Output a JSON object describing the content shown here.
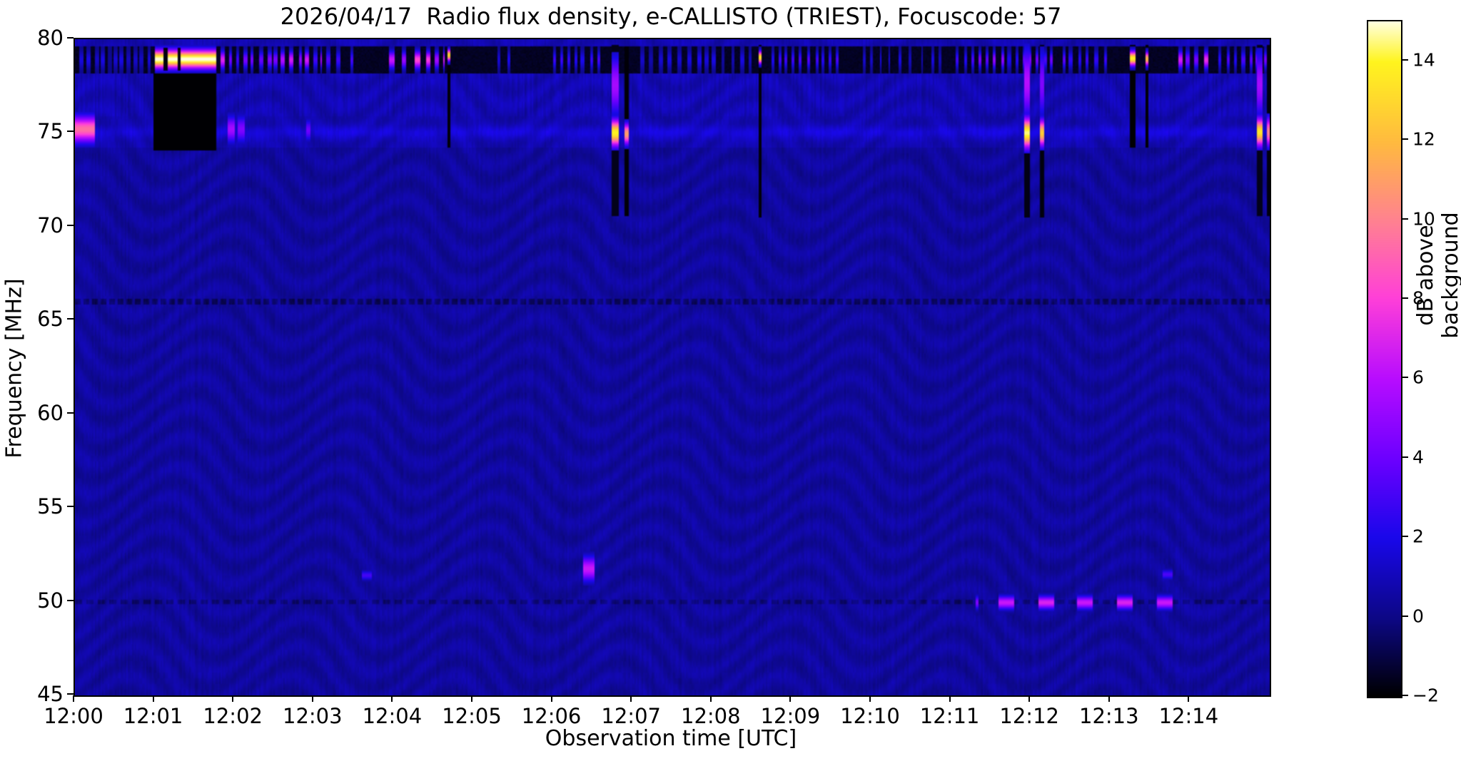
{
  "chart_data": {
    "type": "heatmap",
    "subtype": "radio-spectrogram",
    "title": "2026/04/17  Radio flux density, e-CALLISTO (TRIEST), Focuscode: 57",
    "xlabel": "Observation time [UTC]",
    "ylabel": "Frequency [MHz]",
    "x_range_minutes": [
      0,
      15
    ],
    "x_ticks": [
      {
        "t": 0,
        "label": "12:00"
      },
      {
        "t": 1,
        "label": "12:01"
      },
      {
        "t": 2,
        "label": "12:02"
      },
      {
        "t": 3,
        "label": "12:03"
      },
      {
        "t": 4,
        "label": "12:04"
      },
      {
        "t": 5,
        "label": "12:05"
      },
      {
        "t": 6,
        "label": "12:06"
      },
      {
        "t": 7,
        "label": "12:07"
      },
      {
        "t": 8,
        "label": "12:08"
      },
      {
        "t": 9,
        "label": "12:09"
      },
      {
        "t": 10,
        "label": "12:10"
      },
      {
        "t": 11,
        "label": "12:11"
      },
      {
        "t": 12,
        "label": "12:12"
      },
      {
        "t": 13,
        "label": "12:13"
      },
      {
        "t": 14,
        "label": "12:14"
      }
    ],
    "ylim": [
      45,
      80
    ],
    "y_ticks": [
      80,
      75,
      70,
      65,
      60,
      55,
      50,
      45
    ],
    "grid": false,
    "colorbar": {
      "label": "dB above background",
      "ticks": [
        -2,
        0,
        2,
        4,
        6,
        8,
        10,
        12,
        14
      ],
      "tick_labels": [
        "−2",
        "0",
        "2",
        "4",
        "6",
        "8",
        "10",
        "12",
        "14"
      ],
      "vmin": -2,
      "vmax": 15,
      "colormap": "gnuplot2",
      "key_colors": {
        "low": "#000000",
        "mid_blue": "#0000a0",
        "violet": "#6a00ff",
        "magenta": "#ff40d0",
        "orange": "#ffb040",
        "yellow": "#fff320",
        "high": "#fffde0"
      }
    },
    "background_db": 0.5,
    "structure": {
      "rfi_black_band_mhz": [
        78.2,
        79.7
      ],
      "striped_zone_mhz": [
        75.9,
        78.2
      ],
      "line_75mhz": 75.05,
      "dotted_line_66mhz": 66.0,
      "dotted_line_50mhz": 49.95
    },
    "features": {
      "band_rect": {
        "t": [
          0.99,
          1.77
        ],
        "f": [
          74.1,
          78.2
        ],
        "db": -1.95
      },
      "bright_band": {
        "t": [
          1.0,
          1.77
        ],
        "f": [
          78.45,
          79.42
        ],
        "db": 15.3
      },
      "band_gaps": [
        {
          "t": 1.145,
          "w": 0.05,
          "f": [
            78.3,
            79.55
          ],
          "db": -1.8
        },
        {
          "t": 1.315,
          "w": 0.04,
          "f": [
            78.3,
            79.55
          ],
          "db": -1.8
        }
      ],
      "blobs": [
        {
          "t": [
            0.0,
            0.25
          ],
          "f": [
            74.5,
            75.9
          ],
          "db": 9.5
        },
        {
          "t": [
            1.92,
            2.0
          ],
          "f": [
            74.5,
            75.9
          ],
          "db": 5.5
        },
        {
          "t": [
            2.05,
            2.13
          ],
          "f": [
            74.5,
            75.9
          ],
          "db": 4.5
        },
        {
          "t": [
            2.9,
            2.96
          ],
          "f": [
            74.6,
            75.7
          ],
          "db": 4.0
        },
        {
          "t": [
            3.6,
            3.73
          ],
          "f": [
            51.15,
            51.65
          ],
          "db": 3.0
        },
        {
          "t": [
            6.38,
            6.53
          ],
          "f": [
            51.1,
            52.4
          ],
          "db": 6.5
        },
        {
          "t": [
            13.66,
            13.79
          ],
          "f": [
            51.2,
            51.7
          ],
          "db": 3.2
        }
      ],
      "dashes_50mhz": {
        "f": [
          49.6,
          50.3
        ],
        "items": [
          {
            "t": [
              11.3,
              11.345
            ],
            "db": 4.5
          },
          {
            "t": [
              11.6,
              11.8
            ],
            "db": 6.5
          },
          {
            "t": [
              12.1,
              12.3
            ],
            "db": 7.0
          },
          {
            "t": [
              12.58,
              12.78
            ],
            "db": 6.5
          },
          {
            "t": [
              13.08,
              13.28
            ],
            "db": 7.0
          },
          {
            "t": [
              13.58,
              13.78
            ],
            "db": 6.5
          }
        ]
      },
      "streaks": [
        {
          "t": 4.7,
          "w": 0.04,
          "segs": [
            [
              74.2,
              79.7,
              -1.9
            ],
            [
              78.85,
              79.45,
              13
            ]
          ]
        },
        {
          "t": 6.78,
          "w": 0.1,
          "segs": [
            [
              70.6,
              79.7,
              -1.6
            ],
            [
              76.0,
              79.1,
              5.5
            ],
            [
              74.3,
              75.7,
              14
            ]
          ]
        },
        {
          "t": 6.93,
          "w": 0.055,
          "segs": [
            [
              70.6,
              79.6,
              -1.9
            ],
            [
              74.4,
              75.5,
              11
            ]
          ]
        },
        {
          "t": 8.6,
          "w": 0.04,
          "segs": [
            [
              70.5,
              79.7,
              -1.9
            ],
            [
              78.7,
              79.35,
              13.5
            ]
          ]
        },
        {
          "t": 11.95,
          "w": 0.08,
          "segs": [
            [
              70.5,
              79.7,
              -1.7
            ],
            [
              75.9,
              79.5,
              6
            ],
            [
              74.2,
              75.8,
              14.5
            ]
          ]
        },
        {
          "t": 12.14,
          "w": 0.06,
          "segs": [
            [
              70.5,
              79.7,
              -1.8
            ],
            [
              75.9,
              79.4,
              4.5
            ],
            [
              74.3,
              75.7,
              12.5
            ]
          ]
        },
        {
          "t": 13.28,
          "w": 0.055,
          "segs": [
            [
              74.2,
              79.7,
              -1.95
            ],
            [
              78.6,
              79.35,
              14
            ]
          ]
        },
        {
          "t": 13.46,
          "w": 0.05,
          "segs": [
            [
              74.2,
              79.7,
              -1.95
            ],
            [
              78.6,
              79.3,
              12
            ]
          ]
        },
        {
          "t": 14.88,
          "w": 0.07,
          "segs": [
            [
              70.6,
              79.7,
              -1.6
            ],
            [
              75.9,
              79.3,
              5.5
            ],
            [
              74.3,
              75.8,
              13.5
            ]
          ]
        },
        {
          "t": 14.985,
          "w": 0.03,
          "segs": [
            [
              70.6,
              79.7,
              -1.8
            ],
            [
              74.3,
              75.8,
              10
            ]
          ]
        }
      ],
      "band_dots": [
        {
          "t0": 0.05,
          "t1": 0.95,
          "dw": 0.05,
          "gap": 0.04,
          "db": [
            0.2,
            2.0
          ]
        },
        {
          "t0": 1.83,
          "t1": 3.1,
          "dw": 0.05,
          "gap": 0.045,
          "db": [
            2.5,
            8.0
          ]
        },
        {
          "t0": 3.15,
          "t1": 3.5,
          "dw": 0.05,
          "gap": 0.12,
          "db": [
            1.0,
            3.5
          ]
        },
        {
          "t0": 3.95,
          "t1": 4.65,
          "dw": 0.06,
          "gap": 0.08,
          "db": [
            4.0,
            8.5
          ]
        },
        {
          "t0": 5.3,
          "t1": 5.6,
          "dw": 0.04,
          "gap": 0.1,
          "db": [
            1.5,
            3.5
          ]
        },
        {
          "t0": 6.0,
          "t1": 6.6,
          "dw": 0.04,
          "gap": 0.06,
          "db": [
            1.0,
            3.0
          ]
        },
        {
          "t0": 7.1,
          "t1": 8.5,
          "dw": 0.05,
          "gap": 0.06,
          "db": [
            0.5,
            2.2
          ]
        },
        {
          "t0": 8.75,
          "t1": 9.65,
          "dw": 0.035,
          "gap": 0.05,
          "db": [
            2.0,
            4.0
          ]
        },
        {
          "t0": 9.9,
          "t1": 10.9,
          "dw": 0.03,
          "gap": 0.09,
          "db": [
            1.0,
            2.5
          ]
        },
        {
          "t0": 11.05,
          "t1": 12.35,
          "dw": 0.04,
          "gap": 0.05,
          "db": [
            2.0,
            5.0
          ]
        },
        {
          "t0": 12.4,
          "t1": 13.0,
          "dw": 0.04,
          "gap": 0.06,
          "db": [
            2.0,
            4.0
          ]
        },
        {
          "t0": 13.85,
          "t1": 14.3,
          "dw": 0.05,
          "gap": 0.07,
          "db": [
            4.0,
            8.0
          ]
        },
        {
          "t0": 14.35,
          "t1": 15.0,
          "dw": 0.04,
          "gap": 0.05,
          "db": [
            2.0,
            4.5
          ]
        }
      ]
    }
  }
}
